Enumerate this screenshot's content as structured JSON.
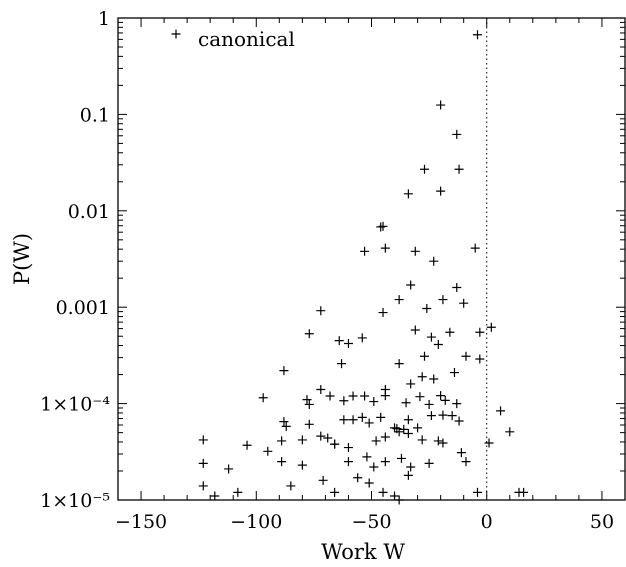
{
  "chart_data": {
    "type": "scatter",
    "title": "",
    "xlabel": "Work W",
    "ylabel": "P(W)",
    "xlim": [
      -160,
      60
    ],
    "ylim": [
      1e-05,
      1
    ],
    "y_scale": "log",
    "grid": false,
    "legend_position": "top-left",
    "marker": "plus",
    "reference_line": {
      "x": 0,
      "style": "dotted"
    },
    "x_ticks": [
      {
        "value": -150,
        "label": "−150"
      },
      {
        "value": -100,
        "label": "−100"
      },
      {
        "value": -50,
        "label": "−50"
      },
      {
        "value": 0,
        "label": "0"
      },
      {
        "value": 50,
        "label": "50"
      }
    ],
    "y_ticks": [
      {
        "value": 1,
        "label": "1"
      },
      {
        "value": 0.1,
        "label": "0.1"
      },
      {
        "value": 0.01,
        "label": "0.01"
      },
      {
        "value": 0.001,
        "label": "0.001"
      },
      {
        "value": 0.0001,
        "label": "1×10⁻⁴"
      },
      {
        "value": 1e-05,
        "label": "1×10⁻⁵"
      }
    ],
    "series": [
      {
        "name": "canonical",
        "color": "#000000",
        "points": [
          [
            -4,
            0.67
          ],
          [
            -20,
            0.125
          ],
          [
            -13,
            0.062
          ],
          [
            -12,
            0.027
          ],
          [
            -27,
            0.027
          ],
          [
            -34,
            0.015
          ],
          [
            -20,
            0.016
          ],
          [
            -46,
            0.0068
          ],
          [
            -45,
            0.0069
          ],
          [
            -53,
            0.0038
          ],
          [
            -44,
            0.0041
          ],
          [
            -31,
            0.0038
          ],
          [
            -5,
            0.0041
          ],
          [
            -23,
            0.003
          ],
          [
            -33,
            0.0017
          ],
          [
            -13,
            0.0016
          ],
          [
            -38,
            0.0012
          ],
          [
            -10,
            0.0011
          ],
          [
            -19,
            0.0012
          ],
          [
            -72,
            0.00092
          ],
          [
            -45,
            0.00088
          ],
          [
            -26,
            0.00097
          ],
          [
            -77,
            0.00053
          ],
          [
            -64,
            0.00045
          ],
          [
            -54,
            0.00048
          ],
          [
            -31,
            0.00058
          ],
          [
            -16,
            0.00055
          ],
          [
            -3,
            0.00055
          ],
          [
            2,
            0.00062
          ],
          [
            -60,
            0.00042
          ],
          [
            -24,
            0.00049
          ],
          [
            -21,
            0.00041
          ],
          [
            -9,
            0.00031
          ],
          [
            -3,
            0.00029
          ],
          [
            -88,
            0.00022
          ],
          [
            -63,
            0.00026
          ],
          [
            -38,
            0.00026
          ],
          [
            -27,
            0.00031
          ],
          [
            -28,
            0.00019
          ],
          [
            -23,
            0.00018
          ],
          [
            -14,
            0.00021
          ],
          [
            -72,
            0.00014
          ],
          [
            -53,
            0.00012
          ],
          [
            -44,
            0.00014
          ],
          [
            -33,
            0.00016
          ],
          [
            -97,
            0.000115
          ],
          [
            -78,
            0.00011
          ],
          [
            -77,
            9.8e-05
          ],
          [
            -68,
            0.00012
          ],
          [
            -62,
            0.000107
          ],
          [
            -58,
            0.00012
          ],
          [
            -49,
            0.000105
          ],
          [
            -44,
            0.000121
          ],
          [
            -35,
            0.000102
          ],
          [
            -29,
            0.000118
          ],
          [
            -25,
            9.8e-05
          ],
          [
            -20,
            0.000121
          ],
          [
            -18,
            0.000108
          ],
          [
            -13,
            0.0001
          ],
          [
            6,
            8.4e-05
          ],
          [
            -88,
            6.5e-05
          ],
          [
            -87,
            5.8e-05
          ],
          [
            -77,
            6.1e-05
          ],
          [
            -62,
            6.8e-05
          ],
          [
            -58,
            6.8e-05
          ],
          [
            -54,
            7.2e-05
          ],
          [
            -51,
            6.3e-05
          ],
          [
            -46,
            7.2e-05
          ],
          [
            -40,
            5.6e-05
          ],
          [
            -36,
            5.4e-05
          ],
          [
            -34,
            6.8e-05
          ],
          [
            -30,
            5.6e-05
          ],
          [
            -24,
            7.5e-05
          ],
          [
            -19,
            7.6e-05
          ],
          [
            -15,
            7.5e-05
          ],
          [
            -12,
            6.6e-05
          ],
          [
            -123,
            4.2e-05
          ],
          [
            -104,
            3.7e-05
          ],
          [
            -95,
            3.2e-05
          ],
          [
            -89,
            4.1e-05
          ],
          [
            -80,
            4.2e-05
          ],
          [
            -72,
            4.6e-05
          ],
          [
            -69,
            4.4e-05
          ],
          [
            -66,
            3.8e-05
          ],
          [
            -60,
            3.5e-05
          ],
          [
            -48,
            4.1e-05
          ],
          [
            -44,
            4.5e-05
          ],
          [
            -39,
            5.5e-05
          ],
          [
            -38,
            5.1e-05
          ],
          [
            -34,
            4.9e-05
          ],
          [
            -28,
            4.2e-05
          ],
          [
            -21,
            4.1e-05
          ],
          [
            -19,
            3.9e-05
          ],
          [
            -11,
            3.1e-05
          ],
          [
            1,
            3.9e-05
          ],
          [
            10,
            5.1e-05
          ],
          [
            -123,
            2.4e-05
          ],
          [
            -112,
            2.1e-05
          ],
          [
            -89,
            2.5e-05
          ],
          [
            -80,
            2.3e-05
          ],
          [
            -66,
            3.8e-05
          ],
          [
            -60,
            2.5e-05
          ],
          [
            -52,
            2.8e-05
          ],
          [
            -49,
            2.2e-05
          ],
          [
            -44,
            2.5e-05
          ],
          [
            -37,
            2.7e-05
          ],
          [
            -33,
            2.2e-05
          ],
          [
            -25,
            2.4e-05
          ],
          [
            -9,
            2.5e-05
          ],
          [
            -123,
            1.4e-05
          ],
          [
            -118,
            1.1e-05
          ],
          [
            -108,
            1.2e-05
          ],
          [
            -85,
            1.4e-05
          ],
          [
            -71,
            1.6e-05
          ],
          [
            -66,
            1.2e-05
          ],
          [
            -56,
            1.7e-05
          ],
          [
            -51,
            1.5e-05
          ],
          [
            -45,
            1.2e-05
          ],
          [
            -40,
            1.1e-05
          ],
          [
            -38,
            1e-05
          ],
          [
            -34,
            1.8e-05
          ],
          [
            -4,
            1.2e-05
          ],
          [
            14,
            1.2e-05
          ],
          [
            16,
            1.2e-05
          ]
        ]
      }
    ]
  }
}
